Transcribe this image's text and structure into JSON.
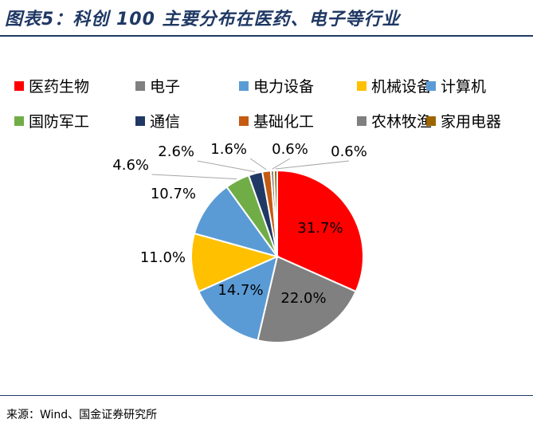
{
  "title": "图表5：科创 100 主要分布在医药、电子等行业",
  "source": "来源：Wind、国金证券研究所",
  "chart_data": {
    "type": "pie",
    "series": [
      {
        "name": "医药生物",
        "value": 31.7,
        "label": "31.7%",
        "color": "#ff0000"
      },
      {
        "name": "电子",
        "value": 22.0,
        "label": "22.0%",
        "color": "#808080"
      },
      {
        "name": "电力设备",
        "value": 14.7,
        "label": "14.7%",
        "color": "#5b9bd5"
      },
      {
        "name": "机械设备",
        "value": 11.0,
        "label": "11.0%",
        "color": "#ffc000"
      },
      {
        "name": "计算机",
        "value": 10.7,
        "label": "10.7%",
        "color": "#5b9bd5"
      },
      {
        "name": "国防军工",
        "value": 4.6,
        "label": "4.6%",
        "color": "#70ad47"
      },
      {
        "name": "通信",
        "value": 2.6,
        "label": "2.6%",
        "color": "#203864"
      },
      {
        "name": "基础化工",
        "value": 1.6,
        "label": "1.6%",
        "color": "#c55a11"
      },
      {
        "name": "农林牧渔",
        "value": 0.6,
        "label": "0.6%",
        "color": "#7f7f7f"
      },
      {
        "name": "家用电器",
        "value": 0.6,
        "label": "0.6%",
        "color": "#9c6500"
      }
    ],
    "legend_position": "top"
  }
}
